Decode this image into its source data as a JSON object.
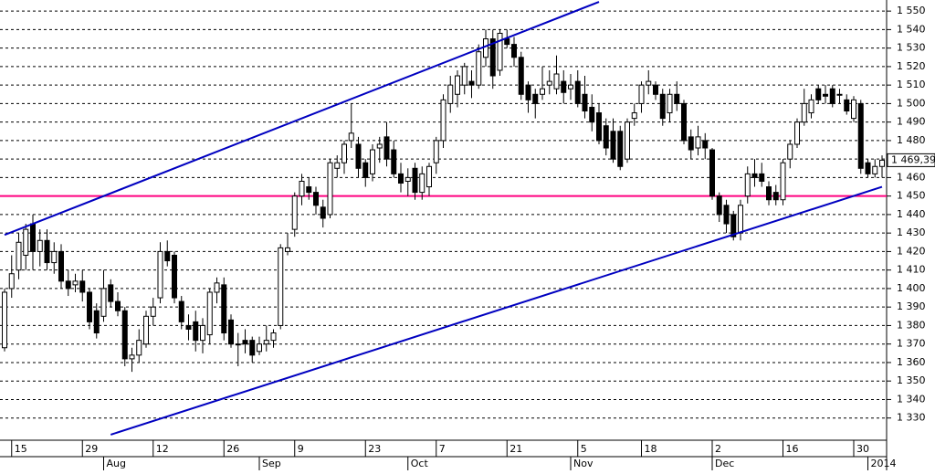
{
  "chart_data": {
    "type": "candlestick",
    "categories": [
      null,
      "15",
      null,
      null,
      null,
      null,
      null,
      null,
      null,
      null,
      null,
      "29",
      null,
      null,
      null,
      null,
      null,
      null,
      null,
      null,
      null,
      "12",
      null,
      null,
      null,
      null,
      null,
      null,
      null,
      null,
      null,
      "26",
      null,
      null,
      null,
      null,
      null,
      null,
      null,
      null,
      null,
      "9",
      null,
      null,
      null,
      null,
      null,
      null,
      null,
      null,
      null,
      "23",
      null,
      null,
      null,
      null,
      null,
      null,
      null,
      null,
      null,
      "7",
      null,
      null,
      null,
      null,
      null,
      null,
      null,
      null,
      null,
      "21",
      null,
      null,
      null,
      null,
      null,
      null,
      null,
      null,
      null,
      "5",
      null,
      null,
      null,
      null,
      null,
      null,
      null,
      null,
      "18",
      null,
      null,
      null,
      null,
      null,
      null,
      null,
      null,
      null,
      "2",
      null,
      null,
      null,
      null,
      null,
      null,
      null,
      null,
      null,
      "16",
      null,
      null,
      null,
      null,
      null,
      null,
      null,
      null,
      null,
      "30",
      null,
      null,
      null,
      null
    ],
    "months": [
      null,
      null,
      null,
      null,
      null,
      null,
      null,
      null,
      null,
      null,
      null,
      null,
      null,
      null,
      "Aug",
      null,
      null,
      null,
      null,
      null,
      null,
      null,
      null,
      null,
      null,
      null,
      null,
      null,
      null,
      null,
      null,
      null,
      null,
      null,
      null,
      null,
      "Sep",
      null,
      null,
      null,
      null,
      null,
      null,
      null,
      null,
      null,
      null,
      null,
      null,
      null,
      null,
      null,
      null,
      null,
      null,
      null,
      null,
      "Oct",
      null,
      null,
      null,
      null,
      null,
      null,
      null,
      null,
      null,
      null,
      null,
      null,
      null,
      null,
      null,
      null,
      null,
      null,
      null,
      null,
      null,
      null,
      "Nov",
      null,
      null,
      null,
      null,
      null,
      null,
      null,
      null,
      null,
      null,
      null,
      null,
      null,
      null,
      null,
      null,
      null,
      null,
      null,
      "Dec",
      null,
      null,
      null,
      null,
      null,
      null,
      null,
      null,
      null,
      null,
      null,
      null,
      null,
      null,
      null,
      null,
      null,
      null,
      null,
      null,
      null,
      "2014",
      null,
      null
    ],
    "open": [
      1368,
      1400,
      1410,
      1418,
      1435,
      1420,
      1426,
      1414,
      1420,
      1404,
      1402,
      1404,
      1398,
      1388,
      1385,
      1402,
      1393,
      1388,
      1362,
      1364,
      1370,
      1385,
      1395,
      1420,
      1418,
      1393,
      1380,
      1382,
      1372,
      1375,
      1398,
      1402,
      1383,
      1370,
      1372,
      1372,
      1366,
      1370,
      1372,
      1380,
      1420,
      1432,
      1450,
      1455,
      1452,
      1444,
      1440,
      1465,
      1468,
      1480,
      1478,
      1468,
      1462,
      1476,
      1482,
      1475,
      1462,
      1458,
      1465,
      1452,
      1455,
      1468,
      1480,
      1500,
      1505,
      1510,
      1512,
      1510,
      1525,
      1535,
      1518,
      1535,
      1532,
      1525,
      1510,
      1505,
      1505,
      1510,
      1508,
      1512,
      1508,
      1512,
      1505,
      1498,
      1495,
      1488,
      1485,
      1485,
      1470,
      1492,
      1500,
      1510,
      1510,
      1505,
      1495,
      1505,
      1500,
      1482,
      1476,
      1480,
      1475,
      1450,
      1445,
      1440,
      1430,
      1450,
      1462,
      1462,
      1455,
      1452,
      1448,
      1470,
      1478,
      1490,
      1495,
      1508,
      1505,
      1508,
      1505,
      1502,
      1492,
      1500,
      1468,
      1462,
      1466
    ],
    "high": [
      1400,
      1418,
      1430,
      1435,
      1440,
      1432,
      1432,
      1425,
      1424,
      1410,
      1408,
      1410,
      1400,
      1392,
      1410,
      1405,
      1398,
      1390,
      1368,
      1378,
      1388,
      1395,
      1425,
      1426,
      1420,
      1396,
      1386,
      1388,
      1384,
      1400,
      1406,
      1406,
      1386,
      1376,
      1378,
      1374,
      1374,
      1380,
      1378,
      1424,
      1430,
      1452,
      1462,
      1460,
      1455,
      1448,
      1470,
      1472,
      1480,
      1500,
      1482,
      1470,
      1478,
      1482,
      1490,
      1480,
      1468,
      1465,
      1468,
      1466,
      1468,
      1482,
      1505,
      1515,
      1518,
      1522,
      1518,
      1532,
      1540,
      1540,
      1540,
      1540,
      1536,
      1528,
      1512,
      1508,
      1520,
      1518,
      1526,
      1518,
      1516,
      1518,
      1515,
      1505,
      1500,
      1492,
      1492,
      1488,
      1492,
      1500,
      1512,
      1518,
      1512,
      1508,
      1508,
      1512,
      1502,
      1486,
      1488,
      1484,
      1476,
      1452,
      1448,
      1442,
      1448,
      1466,
      1470,
      1468,
      1458,
      1456,
      1470,
      1480,
      1492,
      1508,
      1505,
      1510,
      1510,
      1510,
      1508,
      1505,
      1504,
      1502,
      1470,
      1470,
      1472
    ],
    "low": [
      1366,
      1395,
      1405,
      1410,
      1410,
      1412,
      1410,
      1408,
      1400,
      1396,
      1398,
      1393,
      1378,
      1373,
      1382,
      1390,
      1385,
      1358,
      1355,
      1360,
      1368,
      1380,
      1392,
      1412,
      1392,
      1378,
      1372,
      1366,
      1365,
      1370,
      1392,
      1372,
      1368,
      1358,
      1365,
      1360,
      1364,
      1366,
      1368,
      1378,
      1418,
      1428,
      1445,
      1448,
      1440,
      1433,
      1438,
      1460,
      1462,
      1476,
      1460,
      1455,
      1458,
      1468,
      1466,
      1460,
      1452,
      1450,
      1448,
      1448,
      1450,
      1462,
      1476,
      1495,
      1498,
      1505,
      1503,
      1508,
      1520,
      1508,
      1515,
      1530,
      1520,
      1502,
      1495,
      1492,
      1502,
      1505,
      1505,
      1500,
      1502,
      1498,
      1492,
      1485,
      1478,
      1472,
      1468,
      1464,
      1468,
      1488,
      1495,
      1505,
      1502,
      1488,
      1490,
      1496,
      1478,
      1470,
      1472,
      1470,
      1448,
      1436,
      1430,
      1426,
      1426,
      1446,
      1455,
      1455,
      1445,
      1445,
      1445,
      1465,
      1476,
      1488,
      1492,
      1500,
      1500,
      1498,
      1500,
      1494,
      1490,
      1462,
      1460,
      1460,
      1460
    ],
    "close": [
      1398,
      1408,
      1425,
      1432,
      1420,
      1426,
      1414,
      1420,
      1404,
      1400,
      1404,
      1398,
      1382,
      1376,
      1400,
      1393,
      1388,
      1362,
      1364,
      1372,
      1385,
      1390,
      1420,
      1415,
      1395,
      1382,
      1378,
      1372,
      1380,
      1398,
      1403,
      1376,
      1370,
      1370,
      1370,
      1364,
      1370,
      1372,
      1376,
      1422,
      1422,
      1450,
      1458,
      1452,
      1445,
      1438,
      1468,
      1468,
      1478,
      1484,
      1465,
      1460,
      1475,
      1478,
      1470,
      1462,
      1457,
      1460,
      1452,
      1462,
      1466,
      1480,
      1502,
      1510,
      1515,
      1520,
      1510,
      1528,
      1535,
      1515,
      1538,
      1532,
      1525,
      1505,
      1502,
      1500,
      1508,
      1512,
      1516,
      1506,
      1510,
      1500,
      1496,
      1490,
      1480,
      1476,
      1470,
      1466,
      1490,
      1495,
      1510,
      1512,
      1505,
      1492,
      1505,
      1500,
      1480,
      1475,
      1482,
      1476,
      1450,
      1440,
      1435,
      1428,
      1445,
      1462,
      1460,
      1458,
      1448,
      1448,
      1468,
      1478,
      1490,
      1500,
      1502,
      1502,
      1504,
      1500,
      1505,
      1496,
      1502,
      1465,
      1462,
      1466,
      1469.39
    ],
    "last_price": {
      "value": 1469.39,
      "label": "1 469,39"
    },
    "up_color": "#ffffff",
    "down_color": "#000000",
    "ylim": [
      1318,
      1556
    ],
    "yticks": [
      {
        "value": 1330,
        "label": "1 330"
      },
      {
        "value": 1340,
        "label": "1 340"
      },
      {
        "value": 1350,
        "label": "1 350"
      },
      {
        "value": 1360,
        "label": "1 360"
      },
      {
        "value": 1370,
        "label": "1 370"
      },
      {
        "value": 1380,
        "label": "1 380"
      },
      {
        "value": 1390,
        "label": "1 390"
      },
      {
        "value": 1400,
        "label": "1 400"
      },
      {
        "value": 1410,
        "label": "1 410"
      },
      {
        "value": 1420,
        "label": "1 420"
      },
      {
        "value": 1430,
        "label": "1 430"
      },
      {
        "value": 1440,
        "label": "1 440"
      },
      {
        "value": 1450,
        "label": "1 450"
      },
      {
        "value": 1460,
        "label": "1 460"
      },
      {
        "value": 1470,
        "label": "1 470"
      },
      {
        "value": 1480,
        "label": "1 480"
      },
      {
        "value": 1490,
        "label": "1 490"
      },
      {
        "value": 1500,
        "label": "1 500"
      },
      {
        "value": 1510,
        "label": "1 510"
      },
      {
        "value": 1520,
        "label": "1 520"
      },
      {
        "value": 1530,
        "label": "1 530"
      },
      {
        "value": 1540,
        "label": "1 540"
      },
      {
        "value": 1550,
        "label": "1 550"
      }
    ],
    "grid": true,
    "trend_lines": [
      {
        "x": [
          0,
          84
        ],
        "y": [
          1429,
          1555
        ],
        "color": "#0000c0"
      },
      {
        "x": [
          15,
          124
        ],
        "y": [
          1321,
          1455
        ],
        "color": "#0000c0"
      }
    ],
    "hline": {
      "value": 1450,
      "color": "#ff0080"
    }
  }
}
